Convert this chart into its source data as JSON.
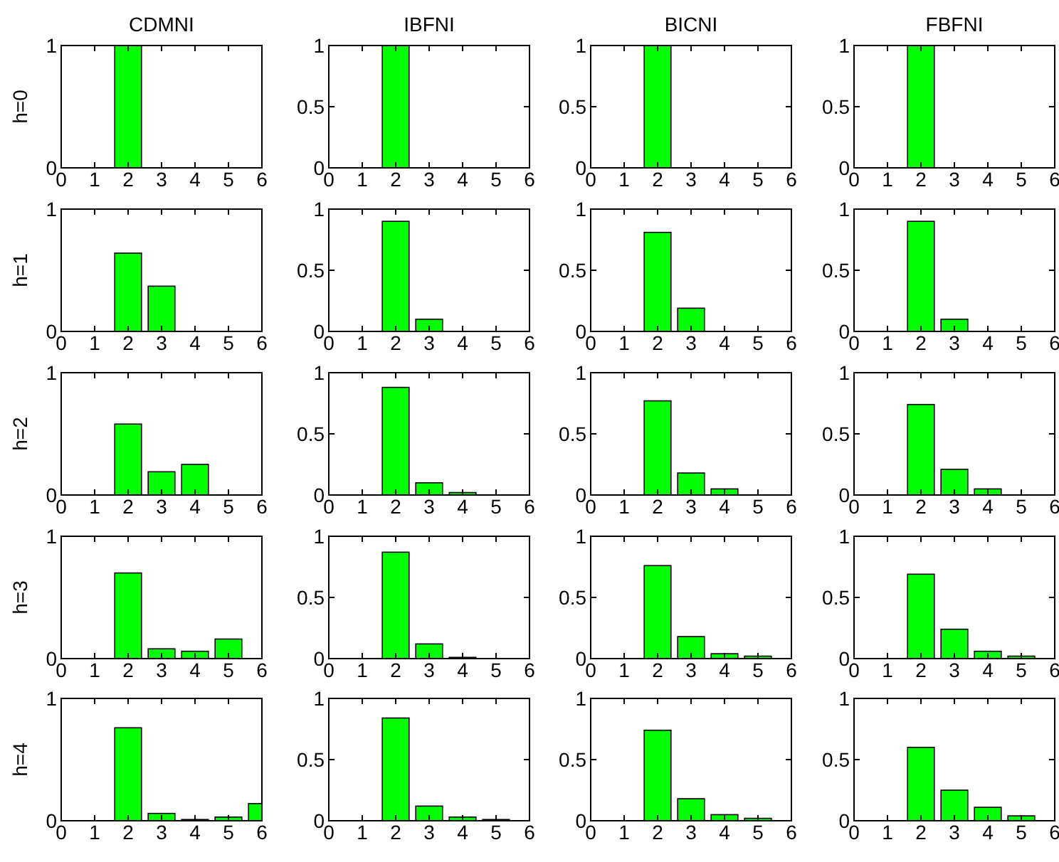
{
  "chart_data": [
    {
      "type": "bar",
      "title": "CDMNI",
      "ylabel": "h=0",
      "x": [
        0,
        1,
        2,
        3,
        4,
        5,
        6
      ],
      "values": [
        0,
        0,
        1,
        0,
        0,
        0,
        0
      ],
      "color": "#00ff00",
      "xlim": [
        0,
        6
      ],
      "xticks": [
        0,
        1,
        2,
        3,
        4,
        5,
        6
      ],
      "ylim": [
        0,
        1
      ],
      "yticks": [
        0,
        1
      ],
      "grid": false
    },
    {
      "type": "bar",
      "title": "IBFNI",
      "x": [
        0,
        1,
        2,
        3,
        4,
        5,
        6
      ],
      "values": [
        0,
        0,
        1,
        0,
        0,
        0,
        0
      ],
      "color": "#00ff00",
      "xlim": [
        0,
        6
      ],
      "xticks": [
        0,
        1,
        2,
        3,
        4,
        5,
        6
      ],
      "ylim": [
        0,
        1
      ],
      "yticks": [
        0,
        0.5,
        1
      ],
      "grid": false
    },
    {
      "type": "bar",
      "title": "BICNI",
      "x": [
        0,
        1,
        2,
        3,
        4,
        5,
        6
      ],
      "values": [
        0,
        0,
        1,
        0,
        0,
        0,
        0
      ],
      "color": "#00ff00",
      "xlim": [
        0,
        6
      ],
      "xticks": [
        0,
        1,
        2,
        3,
        4,
        5,
        6
      ],
      "ylim": [
        0,
        1
      ],
      "yticks": [
        0,
        0.5,
        1
      ],
      "grid": false
    },
    {
      "type": "bar",
      "title": "FBFNI",
      "x": [
        0,
        1,
        2,
        3,
        4,
        5,
        6
      ],
      "values": [
        0,
        0,
        1,
        0,
        0,
        0,
        0
      ],
      "color": "#00ff00",
      "xlim": [
        0,
        6
      ],
      "xticks": [
        0,
        1,
        2,
        3,
        4,
        5,
        6
      ],
      "ylim": [
        0,
        1
      ],
      "yticks": [
        0,
        0.5,
        1
      ],
      "grid": false
    },
    {
      "type": "bar",
      "ylabel": "h=1",
      "x": [
        0,
        1,
        2,
        3,
        4,
        5,
        6
      ],
      "values": [
        0,
        0,
        0.64,
        0.37,
        0,
        0,
        0
      ],
      "color": "#00ff00",
      "xlim": [
        0,
        6
      ],
      "xticks": [
        0,
        1,
        2,
        3,
        4,
        5,
        6
      ],
      "ylim": [
        0,
        1
      ],
      "yticks": [
        0,
        1
      ],
      "grid": false
    },
    {
      "type": "bar",
      "x": [
        0,
        1,
        2,
        3,
        4,
        5,
        6
      ],
      "values": [
        0,
        0,
        0.9,
        0.1,
        0,
        0,
        0
      ],
      "color": "#00ff00",
      "xlim": [
        0,
        6
      ],
      "xticks": [
        0,
        1,
        2,
        3,
        4,
        5,
        6
      ],
      "ylim": [
        0,
        1
      ],
      "yticks": [
        0,
        0.5,
        1
      ],
      "grid": false
    },
    {
      "type": "bar",
      "x": [
        0,
        1,
        2,
        3,
        4,
        5,
        6
      ],
      "values": [
        0,
        0,
        0.81,
        0.19,
        0,
        0,
        0
      ],
      "color": "#00ff00",
      "xlim": [
        0,
        6
      ],
      "xticks": [
        0,
        1,
        2,
        3,
        4,
        5,
        6
      ],
      "ylim": [
        0,
        1
      ],
      "yticks": [
        0,
        0.5,
        1
      ],
      "grid": false
    },
    {
      "type": "bar",
      "x": [
        0,
        1,
        2,
        3,
        4,
        5,
        6
      ],
      "values": [
        0,
        0,
        0.9,
        0.1,
        0,
        0,
        0
      ],
      "color": "#00ff00",
      "xlim": [
        0,
        6
      ],
      "xticks": [
        0,
        1,
        2,
        3,
        4,
        5,
        6
      ],
      "ylim": [
        0,
        1
      ],
      "yticks": [
        0,
        0.5,
        1
      ],
      "grid": false
    },
    {
      "type": "bar",
      "ylabel": "h=2",
      "x": [
        0,
        1,
        2,
        3,
        4,
        5,
        6
      ],
      "values": [
        0,
        0,
        0.58,
        0.19,
        0.25,
        0,
        0
      ],
      "color": "#00ff00",
      "xlim": [
        0,
        6
      ],
      "xticks": [
        0,
        1,
        2,
        3,
        4,
        5,
        6
      ],
      "ylim": [
        0,
        1
      ],
      "yticks": [
        0,
        1
      ],
      "grid": false
    },
    {
      "type": "bar",
      "x": [
        0,
        1,
        2,
        3,
        4,
        5,
        6
      ],
      "values": [
        0,
        0,
        0.88,
        0.1,
        0.02,
        0,
        0
      ],
      "color": "#00ff00",
      "xlim": [
        0,
        6
      ],
      "xticks": [
        0,
        1,
        2,
        3,
        4,
        5,
        6
      ],
      "ylim": [
        0,
        1
      ],
      "yticks": [
        0,
        0.5,
        1
      ],
      "grid": false
    },
    {
      "type": "bar",
      "x": [
        0,
        1,
        2,
        3,
        4,
        5,
        6
      ],
      "values": [
        0,
        0,
        0.77,
        0.18,
        0.05,
        0,
        0
      ],
      "color": "#00ff00",
      "xlim": [
        0,
        6
      ],
      "xticks": [
        0,
        1,
        2,
        3,
        4,
        5,
        6
      ],
      "ylim": [
        0,
        1
      ],
      "yticks": [
        0,
        0.5,
        1
      ],
      "grid": false
    },
    {
      "type": "bar",
      "x": [
        0,
        1,
        2,
        3,
        4,
        5,
        6
      ],
      "values": [
        0,
        0,
        0.74,
        0.21,
        0.05,
        0,
        0
      ],
      "color": "#00ff00",
      "xlim": [
        0,
        6
      ],
      "xticks": [
        0,
        1,
        2,
        3,
        4,
        5,
        6
      ],
      "ylim": [
        0,
        1
      ],
      "yticks": [
        0,
        0.5,
        1
      ],
      "grid": false
    },
    {
      "type": "bar",
      "ylabel": "h=3",
      "x": [
        0,
        1,
        2,
        3,
        4,
        5,
        6
      ],
      "values": [
        0,
        0,
        0.7,
        0.08,
        0.06,
        0.16,
        0
      ],
      "color": "#00ff00",
      "xlim": [
        0,
        6
      ],
      "xticks": [
        0,
        1,
        2,
        3,
        4,
        5,
        6
      ],
      "ylim": [
        0,
        1
      ],
      "yticks": [
        0,
        1
      ],
      "grid": false
    },
    {
      "type": "bar",
      "x": [
        0,
        1,
        2,
        3,
        4,
        5,
        6
      ],
      "values": [
        0,
        0,
        0.87,
        0.12,
        0.01,
        0,
        0
      ],
      "color": "#00ff00",
      "xlim": [
        0,
        6
      ],
      "xticks": [
        0,
        1,
        2,
        3,
        4,
        5,
        6
      ],
      "ylim": [
        0,
        1
      ],
      "yticks": [
        0,
        0.5,
        1
      ],
      "grid": false
    },
    {
      "type": "bar",
      "x": [
        0,
        1,
        2,
        3,
        4,
        5,
        6
      ],
      "values": [
        0,
        0,
        0.76,
        0.18,
        0.04,
        0.02,
        0
      ],
      "color": "#00ff00",
      "xlim": [
        0,
        6
      ],
      "xticks": [
        0,
        1,
        2,
        3,
        4,
        5,
        6
      ],
      "ylim": [
        0,
        1
      ],
      "yticks": [
        0,
        0.5,
        1
      ],
      "grid": false
    },
    {
      "type": "bar",
      "x": [
        0,
        1,
        2,
        3,
        4,
        5,
        6
      ],
      "values": [
        0,
        0,
        0.69,
        0.24,
        0.06,
        0.02,
        0
      ],
      "color": "#00ff00",
      "xlim": [
        0,
        6
      ],
      "xticks": [
        0,
        1,
        2,
        3,
        4,
        5,
        6
      ],
      "ylim": [
        0,
        1
      ],
      "yticks": [
        0,
        0.5,
        1
      ],
      "grid": false
    },
    {
      "type": "bar",
      "ylabel": "h=4",
      "x": [
        0,
        1,
        2,
        3,
        4,
        5,
        6
      ],
      "values": [
        0,
        0,
        0.76,
        0.06,
        0.01,
        0.03,
        0.14
      ],
      "color": "#00ff00",
      "xlim": [
        0,
        6
      ],
      "xticks": [
        0,
        1,
        2,
        3,
        4,
        5,
        6
      ],
      "ylim": [
        0,
        1
      ],
      "yticks": [
        0,
        1
      ],
      "grid": false
    },
    {
      "type": "bar",
      "x": [
        0,
        1,
        2,
        3,
        4,
        5,
        6
      ],
      "values": [
        0,
        0,
        0.84,
        0.12,
        0.03,
        0.01,
        0
      ],
      "color": "#00ff00",
      "xlim": [
        0,
        6
      ],
      "xticks": [
        0,
        1,
        2,
        3,
        4,
        5,
        6
      ],
      "ylim": [
        0,
        1
      ],
      "yticks": [
        0,
        0.5,
        1
      ],
      "grid": false
    },
    {
      "type": "bar",
      "x": [
        0,
        1,
        2,
        3,
        4,
        5,
        6
      ],
      "values": [
        0,
        0,
        0.74,
        0.18,
        0.05,
        0.02,
        0
      ],
      "color": "#00ff00",
      "xlim": [
        0,
        6
      ],
      "xticks": [
        0,
        1,
        2,
        3,
        4,
        5,
        6
      ],
      "ylim": [
        0,
        1
      ],
      "yticks": [
        0,
        0.5,
        1
      ],
      "grid": false
    },
    {
      "type": "bar",
      "x": [
        0,
        1,
        2,
        3,
        4,
        5,
        6
      ],
      "values": [
        0,
        0,
        0.6,
        0.25,
        0.11,
        0.04,
        0
      ],
      "color": "#00ff00",
      "xlim": [
        0,
        6
      ],
      "xticks": [
        0,
        1,
        2,
        3,
        4,
        5,
        6
      ],
      "ylim": [
        0,
        1
      ],
      "yticks": [
        0,
        0.5,
        1
      ],
      "grid": false
    }
  ]
}
